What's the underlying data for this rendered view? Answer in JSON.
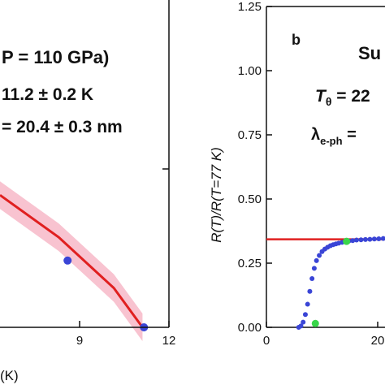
{
  "chart_data": [
    {
      "type": "scatter",
      "panel_label": "",
      "xlabel": "(K)",
      "ylabel": "",
      "xlim": [
        7.4,
        12
      ],
      "ylim": [
        0,
        1
      ],
      "x_ticks": [
        "9",
        "12"
      ],
      "y_ticks": [],
      "annotations": [
        "P = 110 GPa)",
        "11.2 ± 0.2 K",
        "= 20.4 ± 0.3 nm"
      ],
      "fit_line": {
        "color": "#e02020",
        "points": [
          [
            7.4,
            0.404
          ],
          [
            9.0,
            0.275
          ],
          [
            10.5,
            0.12
          ],
          [
            11.28,
            0.0
          ]
        ]
      },
      "confidence_band_color": "#f7b8c8",
      "series": [
        {
          "color": "#3a45d6",
          "points": [
            [
              9.24,
              0.204
            ],
            [
              11.32,
              0.0
            ]
          ]
        }
      ]
    },
    {
      "type": "scatter",
      "panel_label": "b",
      "title_fragment": "Su",
      "xlabel": "",
      "ylabel": "R(T)/R(T=77 K)",
      "xlim": [
        0,
        25
      ],
      "ylim": [
        0,
        1.25
      ],
      "x_ticks": [
        "0",
        "20"
      ],
      "y_ticks": [
        "0.00",
        "0.25",
        "0.50",
        "0.75",
        "1.00",
        "1.25"
      ],
      "annotations": [
        "Tθ = 22",
        "λe-ph ="
      ],
      "reference_line": {
        "color": "#e02020",
        "y": 0.343
      },
      "series": [
        {
          "name": "data",
          "color": "#3a45d6",
          "points": [
            [
              5.8,
              0.0
            ],
            [
              6.2,
              0.005
            ],
            [
              6.6,
              0.02
            ],
            [
              7.0,
              0.05
            ],
            [
              7.4,
              0.09
            ],
            [
              7.8,
              0.14
            ],
            [
              8.2,
              0.19
            ],
            [
              8.6,
              0.23
            ],
            [
              9.0,
              0.26
            ],
            [
              9.5,
              0.28
            ],
            [
              10.0,
              0.295
            ],
            [
              10.5,
              0.305
            ],
            [
              11.0,
              0.312
            ],
            [
              11.5,
              0.318
            ],
            [
              12.0,
              0.322
            ],
            [
              12.5,
              0.325
            ],
            [
              13.0,
              0.328
            ],
            [
              13.6,
              0.331
            ],
            [
              14.2,
              0.334
            ],
            [
              14.8,
              0.336
            ],
            [
              15.5,
              0.338
            ],
            [
              16.2,
              0.34
            ],
            [
              17.0,
              0.341
            ],
            [
              17.8,
              0.342
            ],
            [
              18.6,
              0.343
            ],
            [
              19.4,
              0.344
            ],
            [
              20.2,
              0.345
            ],
            [
              21.0,
              0.346
            ],
            [
              21.8,
              0.347
            ],
            [
              22.6,
              0.348
            ],
            [
              23.4,
              0.349
            ],
            [
              24.2,
              0.35
            ]
          ]
        },
        {
          "name": "markers",
          "color": "#39d64a",
          "points": [
            [
              8.8,
              0.015
            ],
            [
              14.4,
              0.335
            ],
            [
              24.3,
              0.35
            ]
          ]
        }
      ]
    }
  ]
}
